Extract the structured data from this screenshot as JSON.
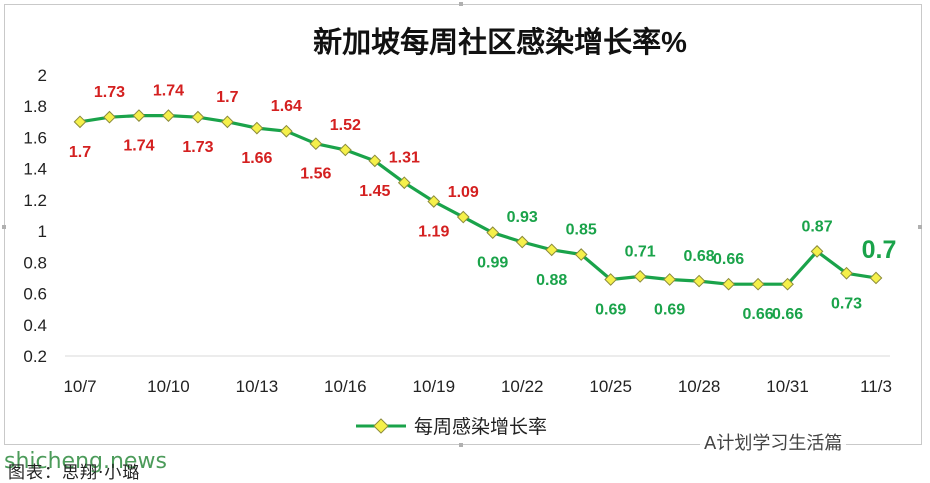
{
  "chart_data": {
    "type": "line",
    "title": "新加坡每周社区感染增长率%",
    "x": [
      "10/7",
      "10/8",
      "10/9",
      "10/10",
      "10/11",
      "10/12",
      "10/13",
      "10/14",
      "10/15",
      "10/16",
      "10/17",
      "10/18",
      "10/19",
      "10/20",
      "10/21",
      "10/22",
      "10/23",
      "10/24",
      "10/25",
      "10/26",
      "10/27",
      "10/28",
      "10/29",
      "10/30",
      "10/31",
      "11/1",
      "11/2",
      "11/3"
    ],
    "x_tick_labels": [
      "10/7",
      "10/10",
      "10/13",
      "10/16",
      "10/19",
      "10/22",
      "10/25",
      "10/28",
      "10/31",
      "11/3"
    ],
    "series": [
      {
        "name": "每周感染增长率",
        "values": [
          1.7,
          1.73,
          1.74,
          1.74,
          1.73,
          1.7,
          1.66,
          1.64,
          1.56,
          1.52,
          1.45,
          1.31,
          1.19,
          1.09,
          0.99,
          0.93,
          0.88,
          0.85,
          0.69,
          0.71,
          0.69,
          0.68,
          0.66,
          0.66,
          0.66,
          0.87,
          0.73,
          0.7
        ]
      }
    ],
    "data_labels": [
      "1.7",
      "1.73",
      "1.74",
      "1.74",
      "1.73",
      "1.7",
      "1.66",
      "1.64",
      "1.56",
      "1.52",
      "1.45",
      "1.31",
      "1.19",
      "1.09",
      "0.99",
      "0.93",
      "0.88",
      "0.85",
      "0.69",
      "0.71",
      "0.69",
      "0.68",
      "0.66",
      "0.66",
      "0.66",
      "0.87",
      "0.73",
      "0.7"
    ],
    "y_ticks": [
      "2",
      "1.8",
      "1.6",
      "1.4",
      "1.2",
      "1",
      "0.8",
      "0.6",
      "0.4",
      "0.2"
    ],
    "ylim": [
      0.2,
      2
    ],
    "grid": false,
    "legend_position": "bottom",
    "colors": {
      "line": "#1aa34a",
      "marker_fill": "#f5f04a",
      "marker_stroke": "#8a8a3a",
      "label_red": "#d42020",
      "label_green": "#1aa34a"
    }
  },
  "footer": {
    "source": "图表：思翔·小璐",
    "watermark": "shicheng.news",
    "wechat": "A计划学习生活篇"
  }
}
